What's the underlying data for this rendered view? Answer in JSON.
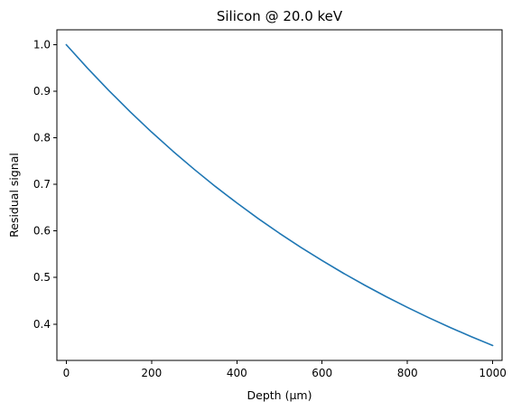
{
  "chart_data": {
    "type": "line",
    "title": "Silicon @ 20.0 keV",
    "xlabel": "Depth (µm)",
    "ylabel": "Residual signal",
    "xlim": [
      -22,
      1022
    ],
    "ylim": [
      0.322,
      1.032
    ],
    "xticks": [
      "0",
      "200",
      "400",
      "600",
      "800",
      "1000"
    ],
    "yticks": [
      "0.4",
      "0.5",
      "0.6",
      "0.7",
      "0.8",
      "0.9",
      "1.0"
    ],
    "grid": false,
    "series": [
      {
        "color": "#1f77b4",
        "x": [
          0,
          50,
          100,
          150,
          200,
          250,
          300,
          350,
          400,
          450,
          500,
          550,
          600,
          650,
          700,
          750,
          800,
          850,
          900,
          950,
          1000
        ],
        "y": [
          1.0,
          0.9494,
          0.9014,
          0.8558,
          0.8125,
          0.7714,
          0.7324,
          0.6953,
          0.6602,
          0.6267,
          0.595,
          0.5649,
          0.5364,
          0.5092,
          0.4835,
          0.459,
          0.4358,
          0.4138,
          0.3928,
          0.3729,
          0.3541
        ]
      }
    ]
  }
}
